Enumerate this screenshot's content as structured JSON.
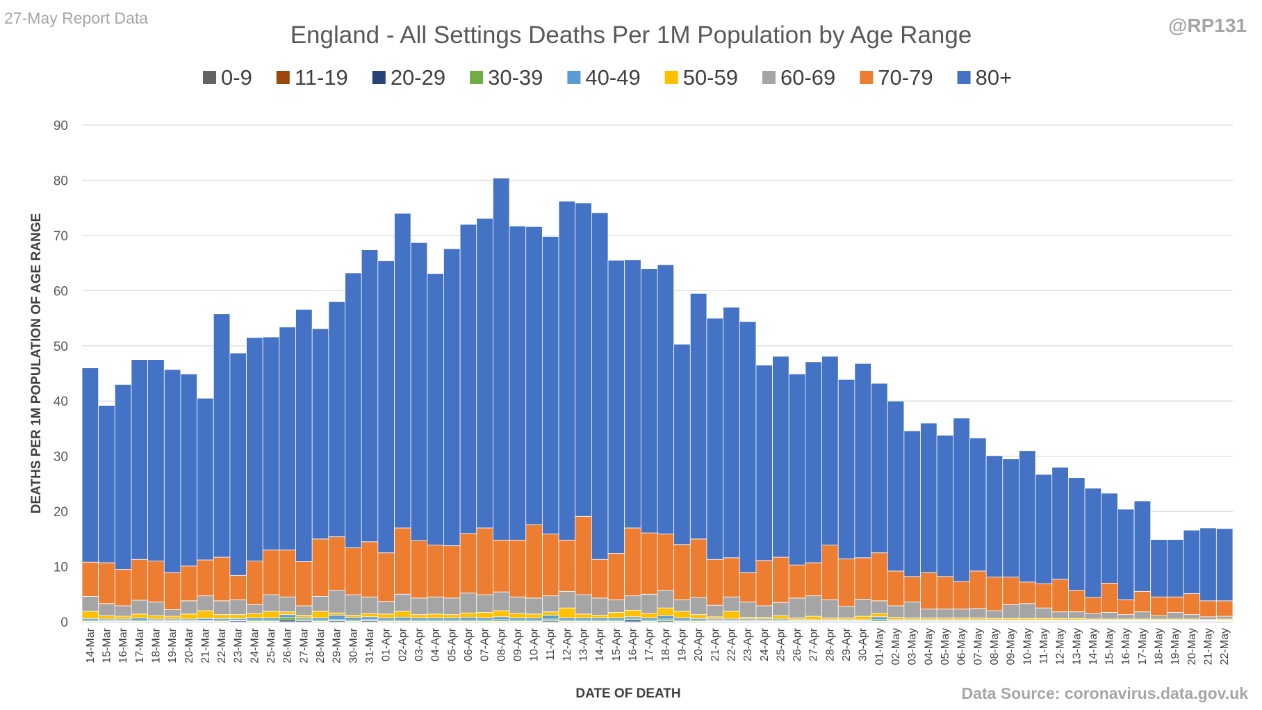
{
  "corner_left": "27-May Report Data",
  "corner_right": "@RP131",
  "source": "Data Source: coronavirus.data.gov.uk",
  "chart_data": {
    "type": "bar",
    "stacked": true,
    "title": "England - All Settings Deaths Per 1M Population by Age Range",
    "xlabel": "DATE OF DEATH",
    "ylabel": "DEATHS PER 1M POPULATION OF AGE RANGE",
    "ylim": [
      0,
      90
    ],
    "yticks": [
      0,
      10,
      20,
      30,
      40,
      50,
      60,
      70,
      80,
      90
    ],
    "grid": true,
    "legend_position": "top",
    "categories": [
      "14-Mar",
      "15-Mar",
      "16-Mar",
      "17-Mar",
      "18-Mar",
      "19-Mar",
      "20-Mar",
      "21-Mar",
      "22-Mar",
      "23-Mar",
      "24-Mar",
      "25-Mar",
      "26-Mar",
      "27-Mar",
      "28-Mar",
      "29-Mar",
      "30-Mar",
      "31-Mar",
      "01-Apr",
      "02-Apr",
      "03-Apr",
      "04-Apr",
      "05-Apr",
      "06-Apr",
      "07-Apr",
      "08-Apr",
      "09-Apr",
      "10-Apr",
      "11-Apr",
      "12-Apr",
      "13-Apr",
      "14-Apr",
      "15-Apr",
      "16-Apr",
      "17-Apr",
      "18-Apr",
      "19-Apr",
      "20-Apr",
      "21-Apr",
      "22-Apr",
      "23-Apr",
      "24-Apr",
      "25-Apr",
      "26-Apr",
      "27-Apr",
      "28-Apr",
      "29-Apr",
      "30-Apr",
      "01-May",
      "02-May",
      "03-May",
      "04-May",
      "05-May",
      "06-May",
      "07-May",
      "08-May",
      "09-May",
      "10-May",
      "11-May",
      "12-May",
      "13-May",
      "14-May",
      "15-May",
      "16-May",
      "17-May",
      "18-May",
      "19-May",
      "20-May",
      "21-May",
      "22-May"
    ],
    "series": [
      {
        "name": "0-9",
        "color": "#636363",
        "values": [
          0,
          0,
          0,
          0,
          0,
          0,
          0,
          0,
          0,
          0,
          0,
          0,
          0,
          0,
          0,
          0,
          0,
          0,
          0,
          0,
          0,
          0,
          0,
          0,
          0,
          0,
          0,
          0,
          0,
          0,
          0,
          0,
          0,
          0,
          0,
          0,
          0,
          0,
          0,
          0,
          0,
          0,
          0,
          0,
          0,
          0,
          0,
          0,
          0,
          0,
          0,
          0,
          0,
          0,
          0,
          0,
          0,
          0,
          0,
          0,
          0,
          0,
          0,
          0,
          0,
          0,
          0,
          0,
          0,
          0
        ]
      },
      {
        "name": "11-19",
        "color": "#9e480e",
        "values": [
          0,
          0,
          0,
          0,
          0,
          0,
          0,
          0,
          0,
          0,
          0,
          0,
          0,
          0,
          0,
          0,
          0,
          0,
          0,
          0,
          0,
          0,
          0,
          0,
          0,
          0,
          0,
          0,
          0,
          0,
          0,
          0,
          0,
          0,
          0,
          0,
          0,
          0,
          0,
          0,
          0,
          0,
          0,
          0,
          0,
          0,
          0,
          0,
          0,
          0,
          0,
          0,
          0,
          0,
          0,
          0,
          0,
          0,
          0,
          0,
          0,
          0,
          0,
          0,
          0,
          0,
          0,
          0,
          0,
          0
        ]
      },
      {
        "name": "20-29",
        "color": "#264478",
        "values": [
          0.1,
          0.1,
          0.1,
          0.1,
          0.1,
          0.1,
          0.1,
          0.1,
          0.1,
          0.2,
          0.1,
          0.1,
          0.3,
          0.2,
          0.1,
          0.2,
          0.1,
          0.2,
          0.1,
          0.1,
          0.1,
          0.1,
          0.1,
          0.1,
          0.1,
          0.1,
          0.1,
          0.1,
          0.2,
          0.1,
          0.1,
          0.1,
          0.1,
          0.3,
          0.1,
          0.2,
          0.1,
          0.1,
          0.1,
          0.1,
          0.1,
          0.1,
          0.1,
          0.1,
          0.1,
          0.1,
          0.1,
          0.1,
          0.1,
          0.1,
          0.1,
          0.1,
          0.1,
          0.1,
          0.1,
          0.1,
          0.1,
          0.1,
          0.1,
          0.1,
          0.1,
          0.1,
          0.1,
          0.1,
          0.1,
          0.1,
          0.1,
          0.1,
          0.1,
          0.1
        ]
      },
      {
        "name": "30-39",
        "color": "#70ad47",
        "values": [
          0.2,
          0.1,
          0.1,
          0.2,
          0.1,
          0.1,
          0.1,
          0.1,
          0.2,
          0.1,
          0.2,
          0.2,
          0.5,
          0.3,
          0.2,
          0.2,
          0.2,
          0.2,
          0.2,
          0.2,
          0.2,
          0.2,
          0.2,
          0.2,
          0.2,
          0.3,
          0.2,
          0.2,
          0.3,
          0.2,
          0.2,
          0.2,
          0.2,
          0.2,
          0.2,
          0.3,
          0.2,
          0.2,
          0.1,
          0.1,
          0.1,
          0.1,
          0.1,
          0.1,
          0.1,
          0.1,
          0.1,
          0.1,
          0.3,
          0.1,
          0.1,
          0.1,
          0.1,
          0.1,
          0.1,
          0.1,
          0.1,
          0.1,
          0.1,
          0.1,
          0.1,
          0.1,
          0.1,
          0.1,
          0.1,
          0.1,
          0.1,
          0.1,
          0.1,
          0.1
        ]
      },
      {
        "name": "40-49",
        "color": "#5b9bd5",
        "values": [
          0.3,
          0.3,
          0.3,
          0.4,
          0.3,
          0.3,
          0.3,
          0.4,
          0.3,
          0.3,
          0.4,
          0.4,
          0.5,
          0.3,
          0.4,
          0.8,
          0.5,
          0.5,
          0.4,
          0.5,
          0.4,
          0.4,
          0.4,
          0.5,
          0.4,
          0.5,
          0.4,
          0.4,
          0.7,
          0.4,
          0.4,
          0.4,
          0.4,
          0.4,
          0.4,
          0.6,
          0.4,
          0.3,
          0.3,
          0.3,
          0.3,
          0.3,
          0.3,
          0.2,
          0.2,
          0.2,
          0.2,
          0.2,
          0.5,
          0.2,
          0.2,
          0.2,
          0.2,
          0.2,
          0.2,
          0.1,
          0.1,
          0.1,
          0.1,
          0.1,
          0.1,
          0.1,
          0.1,
          0.1,
          0.1,
          0.1,
          0.1,
          0.1,
          0.1,
          0.1
        ]
      },
      {
        "name": "50-59",
        "color": "#ffc000",
        "values": [
          1.3,
          0.6,
          0.5,
          0.7,
          0.6,
          0.5,
          0.9,
          1.4,
          0.7,
          0.7,
          0.8,
          1.2,
          0.5,
          0.4,
          1.2,
          0.4,
          0.4,
          0.6,
          0.7,
          1.1,
          0.6,
          0.7,
          0.6,
          0.8,
          1.0,
          1.1,
          0.8,
          0.7,
          0.6,
          1.8,
          0.7,
          0.5,
          1.0,
          1.2,
          0.8,
          1.4,
          1.2,
          0.7,
          0.4,
          1.4,
          0.3,
          0.3,
          0.6,
          0.3,
          0.6,
          0.3,
          0.3,
          0.6,
          0.6,
          0.4,
          0.3,
          0.3,
          0.3,
          0.3,
          0.3,
          0.3,
          0.3,
          0.3,
          0.3,
          0.3,
          0.3,
          0.2,
          0.2,
          0.2,
          0.2,
          0.2,
          0.2,
          0.2,
          0.1,
          0.2
        ]
      },
      {
        "name": "60-69",
        "color": "#a5a5a5",
        "values": [
          2.7,
          2.2,
          1.9,
          2.5,
          2.5,
          1.2,
          2.4,
          2.7,
          2.5,
          2.7,
          1.6,
          3.0,
          2.7,
          1.7,
          2.7,
          4.1,
          3.7,
          3.0,
          2.3,
          3.1,
          3.0,
          3.1,
          3.0,
          3.6,
          3.2,
          3.4,
          3.0,
          2.9,
          2.9,
          3.0,
          3.5,
          3.1,
          2.3,
          2.6,
          3.5,
          3.2,
          2.1,
          3.1,
          2.1,
          2.6,
          2.8,
          2.1,
          2.4,
          3.6,
          3.7,
          3.3,
          2.1,
          3.1,
          2.3,
          2.1,
          2.9,
          1.6,
          1.6,
          1.6,
          1.7,
          1.4,
          2.5,
          2.7,
          1.9,
          1.2,
          1.2,
          1.0,
          1.2,
          0.8,
          1.3,
          0.6,
          1.2,
          0.8,
          0.5,
          0.5
        ]
      },
      {
        "name": "70-79",
        "color": "#ed7d31",
        "values": [
          6.2,
          7.4,
          6.6,
          7.4,
          7.4,
          6.7,
          6.3,
          6.5,
          7.9,
          4.4,
          7.9,
          8.1,
          8.5,
          8.0,
          10.4,
          9.7,
          8.5,
          10.0,
          8.8,
          12.0,
          10.4,
          9.4,
          9.5,
          10.8,
          12.1,
          9.4,
          10.3,
          13.3,
          11.2,
          9.3,
          14.2,
          7.0,
          8.4,
          12.3,
          11.1,
          10.2,
          10.0,
          10.6,
          8.3,
          7.1,
          5.3,
          8.2,
          8.2,
          6.0,
          6.0,
          9.9,
          8.6,
          7.5,
          8.7,
          6.3,
          4.6,
          6.6,
          5.9,
          5.0,
          6.8,
          6.1,
          5.0,
          3.9,
          4.4,
          5.9,
          3.9,
          2.9,
          5.3,
          2.7,
          3.7,
          3.4,
          2.8,
          3.8,
          2.9,
          2.8
        ]
      },
      {
        "name": "80+",
        "color": "#4472c4",
        "values": [
          35.2,
          28.5,
          33.5,
          36.2,
          36.5,
          36.8,
          34.8,
          29.3,
          44.1,
          40.3,
          40.5,
          38.6,
          40.4,
          45.7,
          38.1,
          42.6,
          49.8,
          52.9,
          52.9,
          57.0,
          54.0,
          49.2,
          53.8,
          56.0,
          56.1,
          65.6,
          56.9,
          54.0,
          53.9,
          61.4,
          56.8,
          62.8,
          53.1,
          48.6,
          47.9,
          48.8,
          36.3,
          44.5,
          43.7,
          45.4,
          45.5,
          35.4,
          36.4,
          34.6,
          36.4,
          34.2,
          32.5,
          35.2,
          30.7,
          30.8,
          26.4,
          27.1,
          25.6,
          29.6,
          24.1,
          22.0,
          21.4,
          23.8,
          19.8,
          20.3,
          20.4,
          19.8,
          16.3,
          16.4,
          16.4,
          10.4,
          10.4,
          11.5,
          13.2,
          13.1
        ]
      }
    ]
  }
}
